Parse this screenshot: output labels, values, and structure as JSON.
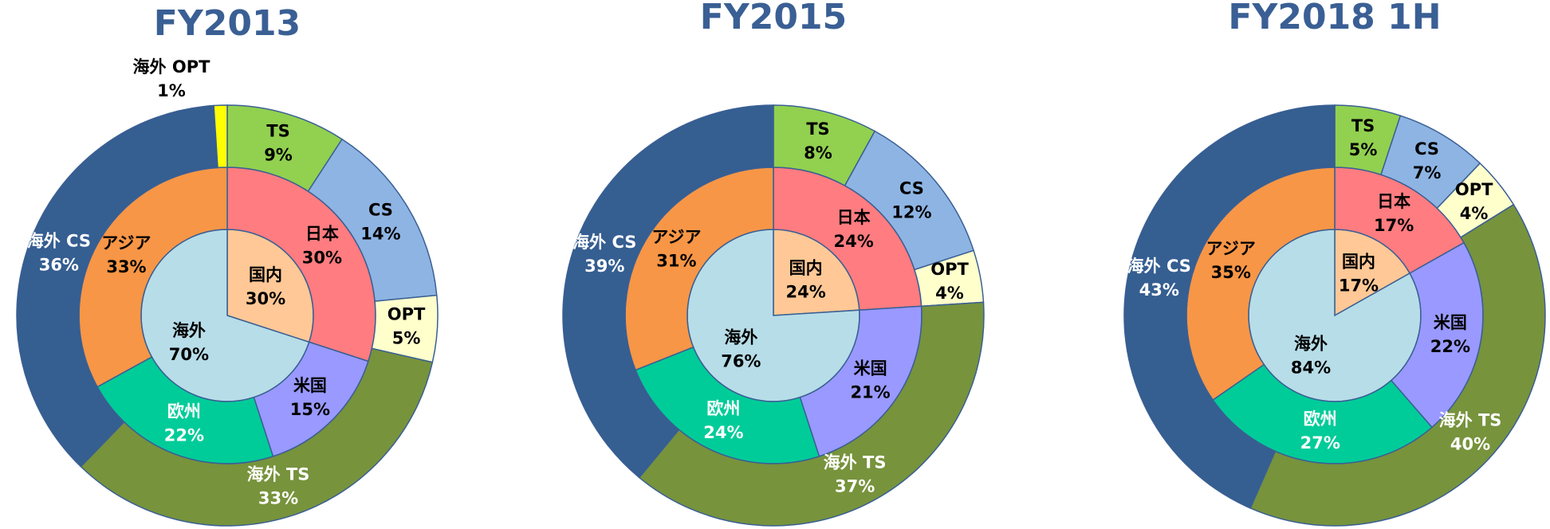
{
  "chart_data": [
    {
      "type": "nested-donut",
      "title": "FY2013",
      "rings": [
        {
          "categories": [
            "国内",
            "海外"
          ],
          "values": [
            30,
            70
          ],
          "value_labels": [
            "30%",
            "70%"
          ],
          "colors": [
            "#ffc896",
            "#b7dde8"
          ]
        },
        {
          "categories": [
            "日本",
            "米国",
            "欧州",
            "アジア"
          ],
          "values": [
            30,
            15,
            22,
            33
          ],
          "value_labels": [
            "30%",
            "15%",
            "22%",
            "33%"
          ],
          "colors": [
            "#ff7c80",
            "#9999ff",
            "#00cc99",
            "#f79646"
          ]
        },
        {
          "categories": [
            "TS",
            "CS",
            "OPT",
            "海外 TS",
            "海外 CS",
            "海外 OPT"
          ],
          "values": [
            9,
            14,
            5,
            33,
            36,
            1
          ],
          "value_labels": [
            "9%",
            "14%",
            "5%",
            "33%",
            "36%",
            "1%"
          ],
          "colors": [
            "#92d050",
            "#8eb4e3",
            "#ffffcc",
            "#77933c",
            "#355e91",
            "#ffff00"
          ]
        }
      ]
    },
    {
      "type": "nested-donut",
      "title": "FY2015",
      "rings": [
        {
          "categories": [
            "国内",
            "海外"
          ],
          "values": [
            24,
            76
          ],
          "value_labels": [
            "24%",
            "76%"
          ],
          "colors": [
            "#ffc896",
            "#b7dde8"
          ]
        },
        {
          "categories": [
            "日本",
            "米国",
            "欧州",
            "アジア"
          ],
          "values": [
            24,
            21,
            24,
            31
          ],
          "value_labels": [
            "24%",
            "21%",
            "24%",
            "31%"
          ],
          "colors": [
            "#ff7c80",
            "#9999ff",
            "#00cc99",
            "#f79646"
          ]
        },
        {
          "categories": [
            "TS",
            "CS",
            "OPT",
            "海外 TS",
            "海外 CS"
          ],
          "values": [
            8,
            12,
            4,
            37,
            39
          ],
          "value_labels": [
            "8%",
            "12%",
            "4%",
            "37%",
            "39%"
          ],
          "colors": [
            "#92d050",
            "#8eb4e3",
            "#ffffcc",
            "#77933c",
            "#355e91"
          ]
        }
      ]
    },
    {
      "type": "nested-donut",
      "title": "FY2018 1H",
      "rings": [
        {
          "categories": [
            "国内",
            "海外"
          ],
          "values": [
            17,
            84
          ],
          "value_labels": [
            "17%",
            "84%"
          ],
          "colors": [
            "#ffc896",
            "#b7dde8"
          ]
        },
        {
          "categories": [
            "日本",
            "米国",
            "欧州",
            "アジア"
          ],
          "values": [
            17,
            22,
            27,
            35
          ],
          "value_labels": [
            "17%",
            "22%",
            "27%",
            "35%"
          ],
          "colors": [
            "#ff7c80",
            "#9999ff",
            "#00cc99",
            "#f79646"
          ]
        },
        {
          "categories": [
            "TS",
            "CS",
            "OPT",
            "海外 TS",
            "海外 CS"
          ],
          "values": [
            5,
            7,
            4,
            40,
            43
          ],
          "value_labels": [
            "5%",
            "7%",
            "4%",
            "40%",
            "43%"
          ],
          "colors": [
            "#92d050",
            "#8eb4e3",
            "#ffffcc",
            "#77933c",
            "#355e91"
          ]
        }
      ]
    }
  ]
}
